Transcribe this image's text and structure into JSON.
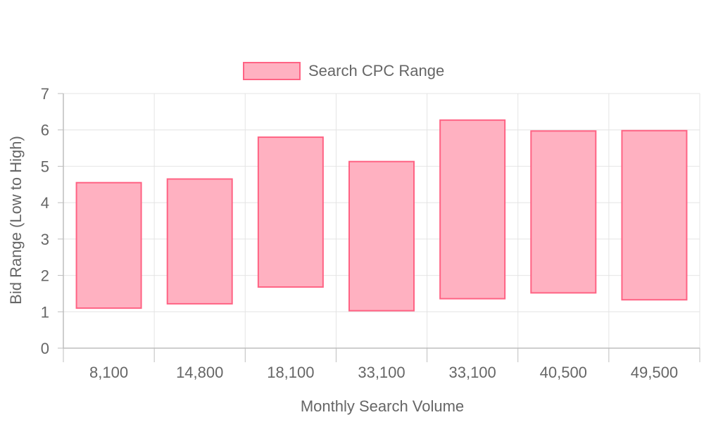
{
  "chart_data": {
    "type": "bar",
    "subtype": "floating-range",
    "categories": [
      "8,100",
      "14,800",
      "18,100",
      "33,100",
      "33,100",
      "40,500",
      "49,500"
    ],
    "series": [
      {
        "name": "Search CPC Range",
        "ranges": [
          [
            1.1,
            4.55
          ],
          [
            1.22,
            4.65
          ],
          [
            1.68,
            5.8
          ],
          [
            1.03,
            5.13
          ],
          [
            1.36,
            6.27
          ],
          [
            1.52,
            5.97
          ],
          [
            1.33,
            5.98
          ]
        ],
        "fill": "#ffb1c1",
        "stroke": "#ff6384"
      }
    ],
    "xlabel": "Monthly Search Volume",
    "ylabel": "Bid Range (Low to High)",
    "ylim": [
      0,
      7
    ],
    "yticks": [
      "0",
      "1",
      "2",
      "3",
      "4",
      "5",
      "6",
      "7"
    ],
    "grid": true,
    "legend_position": "top"
  }
}
